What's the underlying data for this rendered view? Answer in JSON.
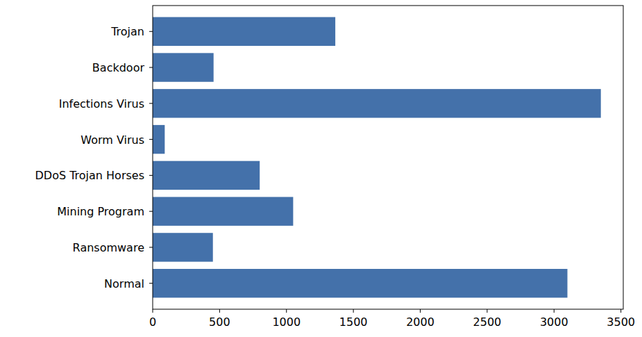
{
  "chart_data": {
    "type": "bar",
    "orientation": "horizontal",
    "categories": [
      "Trojan",
      "Backdoor",
      "Infections Virus",
      "Worm Virus",
      "DDoS Trojan Horses",
      "Mining Program",
      "Ransomware",
      "Normal"
    ],
    "values": [
      1365,
      455,
      3350,
      90,
      800,
      1050,
      450,
      3100
    ],
    "color": "#4471aa",
    "xlim": [
      0,
      3517.5
    ],
    "xticks": [
      0,
      500,
      1000,
      1500,
      2000,
      2500,
      3000,
      3500
    ],
    "grid": false
  }
}
